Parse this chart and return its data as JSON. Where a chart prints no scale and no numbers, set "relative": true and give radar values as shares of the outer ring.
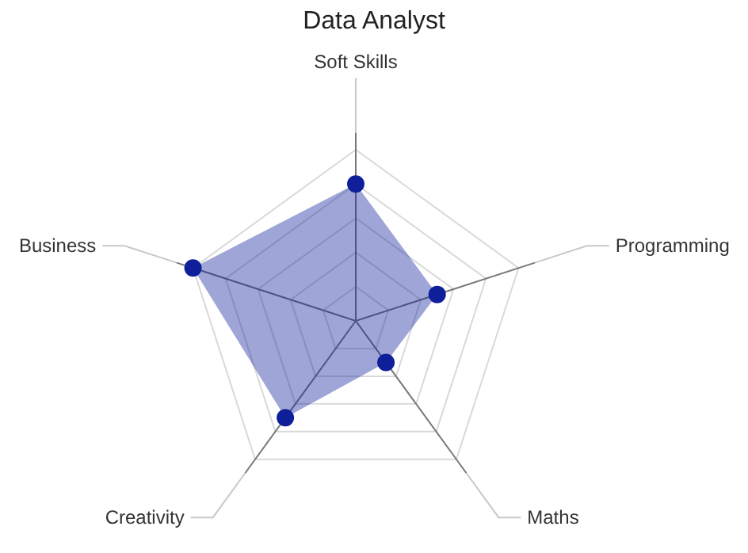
{
  "chart_data": {
    "type": "radar",
    "title": "Data Analyst",
    "categories": [
      "Soft Skills",
      "Programming",
      "Maths",
      "Creativity",
      "Business"
    ],
    "relative": true,
    "grid": true,
    "marker": "circle",
    "series": [
      {
        "color": "#0f1f99",
        "values": [
          0.8,
          0.5,
          0.3,
          0.7,
          1.0
        ]
      }
    ]
  }
}
